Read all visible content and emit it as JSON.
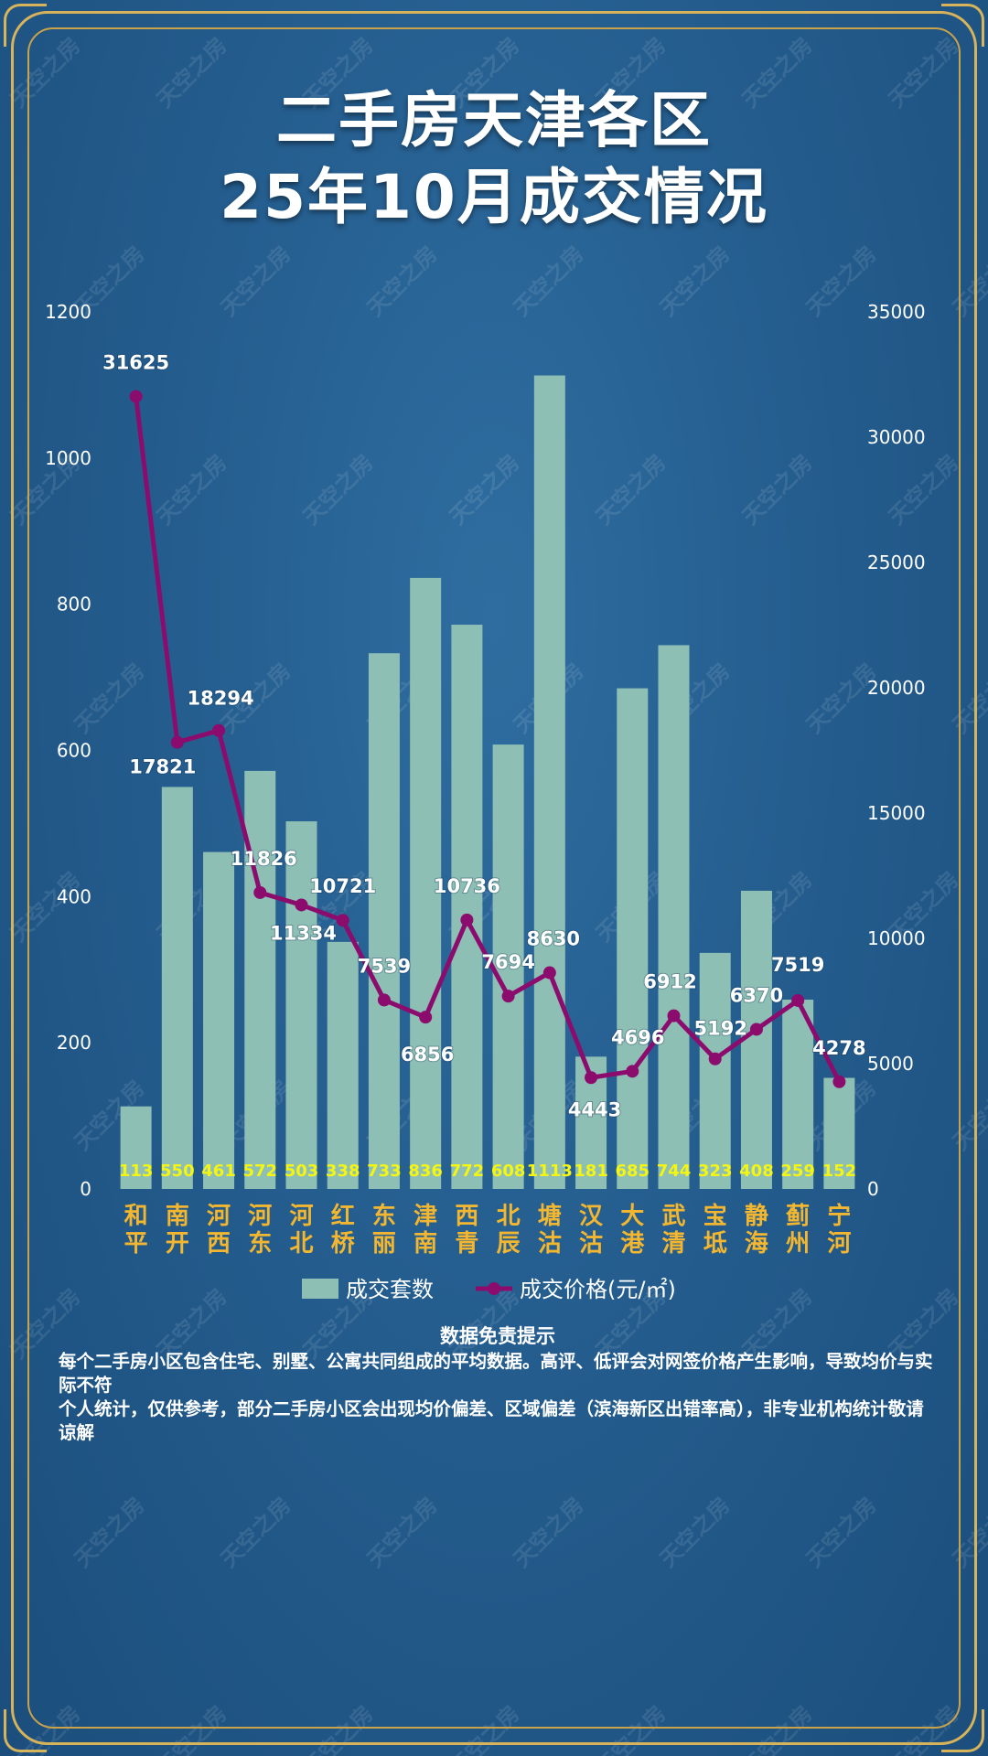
{
  "title": {
    "line1": "二手房天津各区",
    "line2": "25年10月成交情况"
  },
  "watermark_text": "天空之房",
  "colors": {
    "bar": "#8ebfb5",
    "line": "#8c0c6e",
    "count_label": "#f5f512",
    "category_label": "#f2b630",
    "axis_text": "#ffffff",
    "frame": "#d7b35a"
  },
  "chart_data": {
    "type": "bar",
    "categories": [
      "和平",
      "南开",
      "河西",
      "河东",
      "河北",
      "红桥",
      "东丽",
      "津南",
      "西青",
      "北辰",
      "塘沽",
      "汉沽",
      "大港",
      "武清",
      "宝坻",
      "静海",
      "蓟州",
      "宁河"
    ],
    "series": [
      {
        "name": "成交套数",
        "type": "bar",
        "axis": "left",
        "values": [
          113,
          550,
          461,
          572,
          503,
          338,
          733,
          836,
          772,
          608,
          1113,
          181,
          685,
          744,
          323,
          408,
          259,
          152
        ]
      },
      {
        "name": "成交价格(元/㎡)",
        "type": "line",
        "axis": "right",
        "values": [
          31625,
          17821,
          18294,
          11826,
          11334,
          10721,
          7539,
          6856,
          10736,
          7694,
          8630,
          4443,
          4696,
          6912,
          5192,
          6370,
          7519,
          4278
        ]
      }
    ],
    "y_left": {
      "min": 0,
      "max": 1200,
      "ticks": [
        0,
        200,
        400,
        600,
        800,
        1000,
        1200
      ]
    },
    "y_right": {
      "min": 0,
      "max": 35000,
      "ticks": [
        0,
        5000,
        10000,
        15000,
        20000,
        25000,
        30000,
        35000
      ]
    },
    "legend_position": "bottom",
    "grid": false
  },
  "disclaimer": {
    "heading": "数据免责提示",
    "lines": [
      "每个二手房小区包含住宅、别墅、公寓共同组成的平均数据。高评、低评会对网签价格产生影响，导致均价与实际不符",
      "个人统计，仅供参考，部分二手房小区会出现均价偏差、区域偏差（滨海新区出错率高），非专业机构统计敬请谅解"
    ]
  }
}
